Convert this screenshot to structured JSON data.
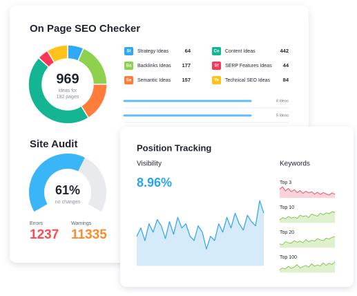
{
  "seo_checker": {
    "title": "On Page SEO Checker",
    "total": 969,
    "caption_1": "ideas for",
    "caption_2": "182 pages",
    "ideas": [
      {
        "badge": "St",
        "name": "Strategy Ideas",
        "count": 64,
        "color": "#2fa8f5"
      },
      {
        "badge": "Ba",
        "name": "Backlinks Ideas",
        "count": 177,
        "color": "#8fd14f"
      },
      {
        "badge": "Se",
        "name": "Semantic Ideas",
        "count": 157,
        "color": "#ff7c3b"
      },
      {
        "badge": "Co",
        "name": "Content Ideas",
        "count": 442,
        "color": "#13b592"
      },
      {
        "badge": "Sf",
        "name": "SERP Features Ideas",
        "count": 44,
        "color": "#ff3757"
      },
      {
        "badge": "Te",
        "name": "Technical SEO Ideas",
        "count": 84,
        "color": "#ffc21a"
      }
    ],
    "progress": [
      "8 Ideas",
      "5 Ideas"
    ]
  },
  "site_audit": {
    "title": "Site Audit",
    "score": 61,
    "score_label": "61%",
    "caption": "no changes",
    "errors_label": "Errors",
    "errors": 1237,
    "warnings_label": "Warnings",
    "warnings": 11335
  },
  "position_tracking": {
    "title": "Position Tracking",
    "visibility_label": "Visibility",
    "visibility": "8.96%",
    "visibility_series": [
      62,
      70,
      58,
      74,
      66,
      78,
      72,
      60,
      76,
      64,
      80,
      70,
      74,
      62,
      58,
      72,
      66,
      50,
      62,
      58,
      74,
      66,
      80,
      70,
      84,
      74,
      68,
      82,
      76,
      72,
      96,
      84
    ],
    "keywords_label": "Keywords",
    "keywords": [
      {
        "label": "Top 3",
        "color": "#e8475f",
        "fill": "#fbd3da",
        "series": [
          70,
          85,
          60,
          75,
          55,
          68,
          50,
          62,
          45,
          58,
          48,
          55,
          40,
          52,
          38,
          50,
          42,
          35,
          48,
          40
        ]
      },
      {
        "label": "Top 10",
        "color": "#7cc242",
        "fill": "#dff0cf",
        "series": [
          30,
          40,
          35,
          45,
          38,
          42,
          36,
          50,
          44,
          48,
          40,
          55,
          50,
          46,
          58,
          52,
          60,
          56,
          65,
          62
        ]
      },
      {
        "label": "Top 20",
        "color": "#7cc242",
        "fill": "#dff0cf",
        "series": [
          35,
          30,
          45,
          40,
          38,
          50,
          42,
          48,
          40,
          55,
          45,
          52,
          48,
          60,
          54,
          50,
          62,
          58,
          66,
          70
        ]
      },
      {
        "label": "Top 100",
        "color": "#7cc242",
        "fill": "#dff0cf",
        "series": [
          20,
          30,
          25,
          40,
          28,
          35,
          50,
          30,
          38,
          45,
          35,
          55,
          40,
          48,
          42,
          60,
          45,
          58,
          50,
          68
        ]
      }
    ]
  }
}
